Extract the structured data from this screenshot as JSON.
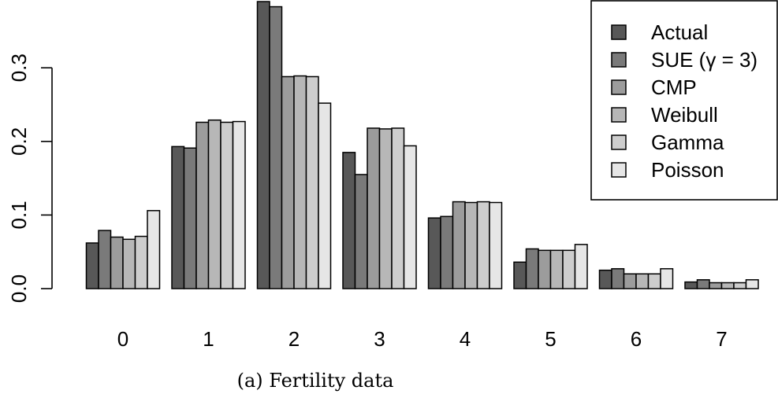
{
  "caption": "(a) Fertility data",
  "chart_data": {
    "type": "bar",
    "title": "",
    "xlabel": "",
    "ylabel": "",
    "ylim": [
      0,
      0.39
    ],
    "y_ticks": [
      "0.0",
      "0.1",
      "0.2",
      "0.3"
    ],
    "categories": [
      "0",
      "1",
      "2",
      "3",
      "4",
      "5",
      "6",
      "7"
    ],
    "legend_position": "top-right",
    "series": [
      {
        "name": "Actual",
        "color": "#585858",
        "values": [
          0.062,
          0.193,
          0.39,
          0.185,
          0.096,
          0.036,
          0.025,
          0.009
        ]
      },
      {
        "name": "SUE (γ = 3)",
        "color": "#7a7a7a",
        "values": [
          0.079,
          0.191,
          0.383,
          0.155,
          0.098,
          0.054,
          0.027,
          0.012
        ]
      },
      {
        "name": "CMP",
        "color": "#9c9c9c",
        "values": [
          0.07,
          0.226,
          0.288,
          0.218,
          0.118,
          0.052,
          0.02,
          0.008
        ]
      },
      {
        "name": "Weibull",
        "color": "#b7b7b7",
        "values": [
          0.067,
          0.229,
          0.289,
          0.217,
          0.117,
          0.052,
          0.02,
          0.008
        ]
      },
      {
        "name": "Gamma",
        "color": "#cdcdcd",
        "values": [
          0.071,
          0.226,
          0.288,
          0.218,
          0.118,
          0.052,
          0.02,
          0.008
        ]
      },
      {
        "name": "Poisson",
        "color": "#e6e6e6",
        "values": [
          0.106,
          0.227,
          0.252,
          0.194,
          0.117,
          0.06,
          0.027,
          0.012
        ]
      }
    ]
  }
}
